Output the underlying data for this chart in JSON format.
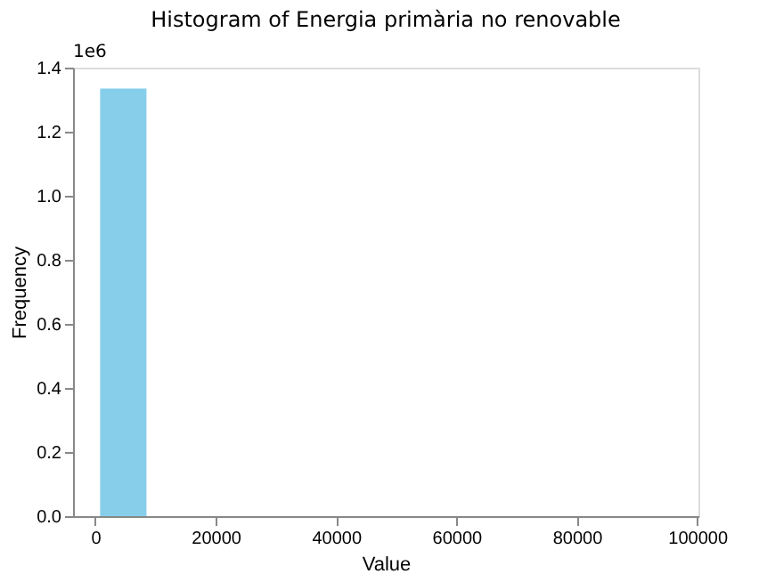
{
  "chart_data": {
    "type": "histogram",
    "title": "Histogram of Energia primària no renovable",
    "xlabel": "Value",
    "ylabel": "Frequency",
    "color": "#87ceeb",
    "bins": [
      800,
      8500,
      16200,
      23900,
      31600,
      39300,
      47000,
      54700,
      62400,
      70100,
      77800,
      85500,
      93200
    ],
    "values": [
      1.335,
      0,
      0,
      0,
      0,
      0,
      0,
      0,
      0,
      0,
      0,
      0
    ],
    "xlim": [
      -3700,
      100200
    ],
    "xticks": [
      0,
      20000,
      40000,
      60000,
      80000,
      100000
    ],
    "ylim": [
      0,
      1.4
    ],
    "yticks": [
      {
        "value": 0,
        "label": "0.0"
      },
      0.2,
      0.4,
      0.6,
      0.8,
      {
        "value": 1,
        "label": "1.0"
      },
      1.2,
      1.4
    ],
    "annotations": [
      "1e6"
    ],
    "grid": false
  }
}
